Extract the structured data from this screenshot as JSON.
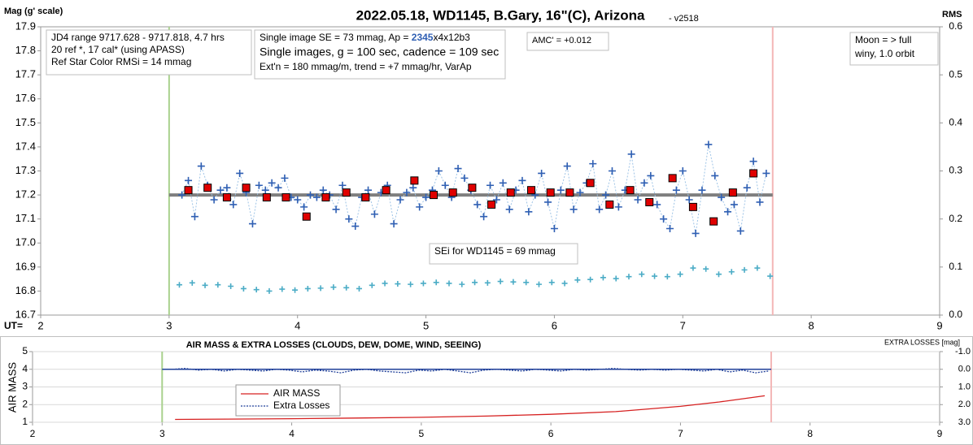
{
  "chart_data": [
    {
      "type": "scatter",
      "title": "2022.05.18, WD1145, B.Gary, 16\"(C), Arizona",
      "subtitle": "- v2518",
      "ylabel": "Mag (g' scale)",
      "y2label": "RMS",
      "xlabel": "UT=",
      "xlim": [
        2,
        9
      ],
      "xticks": [
        2,
        3,
        4,
        5,
        6,
        7,
        8,
        9
      ],
      "ylim": [
        16.7,
        17.9
      ],
      "yticks": [
        16.7,
        16.8,
        16.9,
        {
          "value": 17,
          "label": "17.0"
        },
        17.1,
        17.2,
        17.3,
        17.4,
        17.5,
        17.6,
        17.7,
        17.8,
        17.9
      ],
      "y2lim": [
        0.6,
        0
      ],
      "y2ticks": [
        0.6,
        0.5,
        0.4,
        0.3,
        0.2,
        0.1,
        {
          "value": 0,
          "label": "0.0"
        }
      ],
      "grid": false,
      "vlines": [
        {
          "x": 3,
          "color": "#a9d18e"
        },
        {
          "x": 7.7,
          "color": "#f4b6b6"
        }
      ],
      "hlines": [
        {
          "y": 17.2,
          "x": [
            3,
            7.7
          ],
          "color": "#7f7f7f"
        }
      ],
      "annotations": [
        [
          "JD4 range 9717.628 - 9717.818, 4.7 hrs",
          "20 ref *, 17 cal* (using APASS)",
          "Ref Star Color RMSi = 14 mmag"
        ],
        [
          [
            "Single image SE = 73 mmag, Ap = ",
            "2345",
            "x4x12b3"
          ],
          "Single images, g = 100 sec, cadence = 109 sec",
          "Ext'n = 180 mmag/m, trend = +7 mmag/hr, VarAp"
        ],
        [
          "AMC' = +0.012"
        ],
        [
          "Moon = > full",
          "winy,  1.0 orbit"
        ],
        [
          "SEi for WD1145 = 69 mmag"
        ]
      ],
      "series": [
        {
          "marker": "plus",
          "color": "#2f5fb3",
          "line_color": "#9dc3e6",
          "x": [
            3.1,
            3.15,
            3.2,
            3.25,
            3.3,
            3.35,
            3.4,
            3.45,
            3.5,
            3.55,
            3.6,
            3.65,
            3.7,
            3.75,
            3.8,
            3.85,
            3.9,
            3.95,
            4,
            4.05,
            4.1,
            4.15,
            4.2,
            4.25,
            4.3,
            4.35,
            4.4,
            4.45,
            4.5,
            4.55,
            4.6,
            4.65,
            4.7,
            4.75,
            4.8,
            4.85,
            4.9,
            4.95,
            5,
            5.05,
            5.1,
            5.15,
            5.2,
            5.25,
            5.3,
            5.35,
            5.4,
            5.45,
            5.5,
            5.55,
            5.6,
            5.65,
            5.7,
            5.75,
            5.8,
            5.85,
            5.9,
            5.95,
            6,
            6.05,
            6.1,
            6.15,
            6.2,
            6.25,
            6.3,
            6.35,
            6.4,
            6.45,
            6.5,
            6.55,
            6.6,
            6.65,
            6.7,
            6.75,
            6.8,
            6.85,
            6.9,
            6.95,
            7,
            7.05,
            7.1,
            7.15,
            7.2,
            7.25,
            7.3,
            7.35,
            7.4,
            7.45,
            7.5,
            7.55,
            7.6,
            7.65
          ],
          "values": [
            17.2,
            17.26,
            17.11,
            17.32,
            17.24,
            17.18,
            17.22,
            17.23,
            17.16,
            17.29,
            17.21,
            17.08,
            17.24,
            17.22,
            17.25,
            17.23,
            17.27,
            17.19,
            17.18,
            17.15,
            17.2,
            17.19,
            17.22,
            17.2,
            17.14,
            17.24,
            17.1,
            17.07,
            17.19,
            17.22,
            17.12,
            17.21,
            17.24,
            17.08,
            17.18,
            17.21,
            17.23,
            17.15,
            17.19,
            17.22,
            17.3,
            17.24,
            17.19,
            17.31,
            17.27,
            17.22,
            17.16,
            17.11,
            17.24,
            17.18,
            17.25,
            17.14,
            17.22,
            17.26,
            17.13,
            17.2,
            17.29,
            17.17,
            17.06,
            17.22,
            17.32,
            17.14,
            17.21,
            17.25,
            17.33,
            17.14,
            17.2,
            17.3,
            17.15,
            17.22,
            17.37,
            17.18,
            17.25,
            17.28,
            17.16,
            17.1,
            17.06,
            17.22,
            17.3,
            17.18,
            17.04,
            17.22,
            17.41,
            17.28,
            17.19,
            17.13,
            17.16,
            17.05,
            17.23,
            17.34,
            17.17,
            17.29
          ]
        },
        {
          "marker": "square",
          "color": "#e00000",
          "x": [
            3.15,
            3.3,
            3.45,
            3.6,
            3.76,
            3.91,
            4.07,
            4.22,
            4.38,
            4.53,
            4.69,
            4.91,
            5.06,
            5.21,
            5.36,
            5.51,
            5.66,
            5.82,
            5.97,
            6.12,
            6.28,
            6.43,
            6.59,
            6.74,
            6.92,
            7.08,
            7.24,
            7.39,
            7.55
          ],
          "values": [
            17.22,
            17.23,
            17.19,
            17.23,
            17.19,
            17.19,
            17.11,
            17.19,
            17.21,
            17.19,
            17.22,
            17.26,
            17.2,
            17.21,
            17.23,
            17.16,
            17.21,
            17.22,
            17.21,
            17.21,
            17.25,
            17.16,
            17.22,
            17.17,
            17.27,
            17.15,
            17.09,
            17.21,
            17.29
          ]
        },
        {
          "marker": "plus",
          "color": "#4bacc6",
          "axis": "y2",
          "x": [
            3.08,
            3.18,
            3.28,
            3.38,
            3.48,
            3.58,
            3.68,
            3.78,
            3.88,
            3.98,
            4.08,
            4.18,
            4.28,
            4.38,
            4.48,
            4.58,
            4.68,
            4.78,
            4.88,
            4.98,
            5.08,
            5.18,
            5.28,
            5.38,
            5.48,
            5.58,
            5.68,
            5.78,
            5.88,
            5.98,
            6.08,
            6.18,
            6.28,
            6.38,
            6.48,
            6.58,
            6.68,
            6.78,
            6.88,
            6.98,
            7.08,
            7.18,
            7.28,
            7.38,
            7.48,
            7.58,
            7.68
          ],
          "values": [
            0.063,
            0.067,
            0.062,
            0.063,
            0.06,
            0.055,
            0.053,
            0.05,
            0.054,
            0.052,
            0.055,
            0.056,
            0.058,
            0.057,
            0.055,
            0.062,
            0.066,
            0.065,
            0.064,
            0.066,
            0.068,
            0.066,
            0.064,
            0.068,
            0.067,
            0.07,
            0.069,
            0.068,
            0.064,
            0.068,
            0.066,
            0.073,
            0.074,
            0.078,
            0.076,
            0.08,
            0.085,
            0.081,
            0.08,
            0.085,
            0.098,
            0.096,
            0.085,
            0.09,
            0.094,
            0.098,
            0.081
          ]
        }
      ]
    },
    {
      "type": "line",
      "title": "AIR MASS & EXTRA LOSSES (CLOUDS, DEW, DOME, WIND, SEEING)",
      "ylabel": "AIR MASS",
      "y2label": "EXTRA LOSSES [mag]",
      "xlim": [
        2,
        9
      ],
      "xticks": [
        2,
        3,
        4,
        5,
        6,
        7,
        8,
        9
      ],
      "ylim": [
        1,
        5
      ],
      "yticks": [
        1,
        2,
        3,
        4,
        5
      ],
      "y2lim": [
        -1,
        3
      ],
      "y2ticks": [
        {
          "value": -1,
          "label": "-1.0"
        },
        {
          "value": 0,
          "label": "0.0"
        },
        {
          "value": 1,
          "label": "1.0"
        },
        {
          "value": 2,
          "label": "2.0"
        },
        {
          "value": 3,
          "label": "3.0"
        }
      ],
      "grid": true,
      "legend": "lower left",
      "vlines": [
        {
          "x": 3,
          "color": "#a9d18e"
        },
        {
          "x": 7.7,
          "color": "#f4b6b6"
        }
      ],
      "hlines": [
        {
          "y": 0,
          "axis": "y2",
          "x": [
            3,
            7.7
          ],
          "color": "#1f3f99"
        }
      ],
      "series": [
        {
          "name": "AIR MASS",
          "color": "#d62020",
          "dash": "solid",
          "x": [
            3.1,
            3.5,
            4,
            4.5,
            5,
            5.5,
            6,
            6.5,
            7,
            7.3,
            7.65
          ],
          "values": [
            1.16,
            1.18,
            1.2,
            1.24,
            1.28,
            1.35,
            1.45,
            1.6,
            1.9,
            2.15,
            2.5
          ]
        },
        {
          "name": "Extra Losses",
          "color": "#1f3f99",
          "dash": "dotted",
          "axis": "y2",
          "x": [
            3.08,
            3.18,
            3.28,
            3.38,
            3.48,
            3.58,
            3.68,
            3.78,
            3.88,
            3.98,
            4.08,
            4.18,
            4.28,
            4.38,
            4.48,
            4.58,
            4.68,
            4.78,
            4.88,
            4.98,
            5.08,
            5.18,
            5.28,
            5.38,
            5.48,
            5.58,
            5.68,
            5.78,
            5.88,
            5.98,
            6.08,
            6.18,
            6.28,
            6.38,
            6.48,
            6.58,
            6.68,
            6.78,
            6.88,
            6.98,
            7.08,
            7.18,
            7.28,
            7.38,
            7.48,
            7.58,
            7.68
          ],
          "values": [
            0.0,
            -0.05,
            0.05,
            0.0,
            0.1,
            0.0,
            0.05,
            0.1,
            0.0,
            0.05,
            0.15,
            0.05,
            0.1,
            0.2,
            0.05,
            0.0,
            0.1,
            0.15,
            0.2,
            0.05,
            0.1,
            0.0,
            0.1,
            0.2,
            0.05,
            0.0,
            0.05,
            0.1,
            0.0,
            0.05,
            0.1,
            0.0,
            0.05,
            0.0,
            -0.05,
            0.0,
            0.05,
            0.0,
            0.05,
            0.0,
            0.05,
            0.1,
            0.0,
            0.15,
            0.05,
            0.2,
            0.1
          ]
        }
      ]
    }
  ]
}
